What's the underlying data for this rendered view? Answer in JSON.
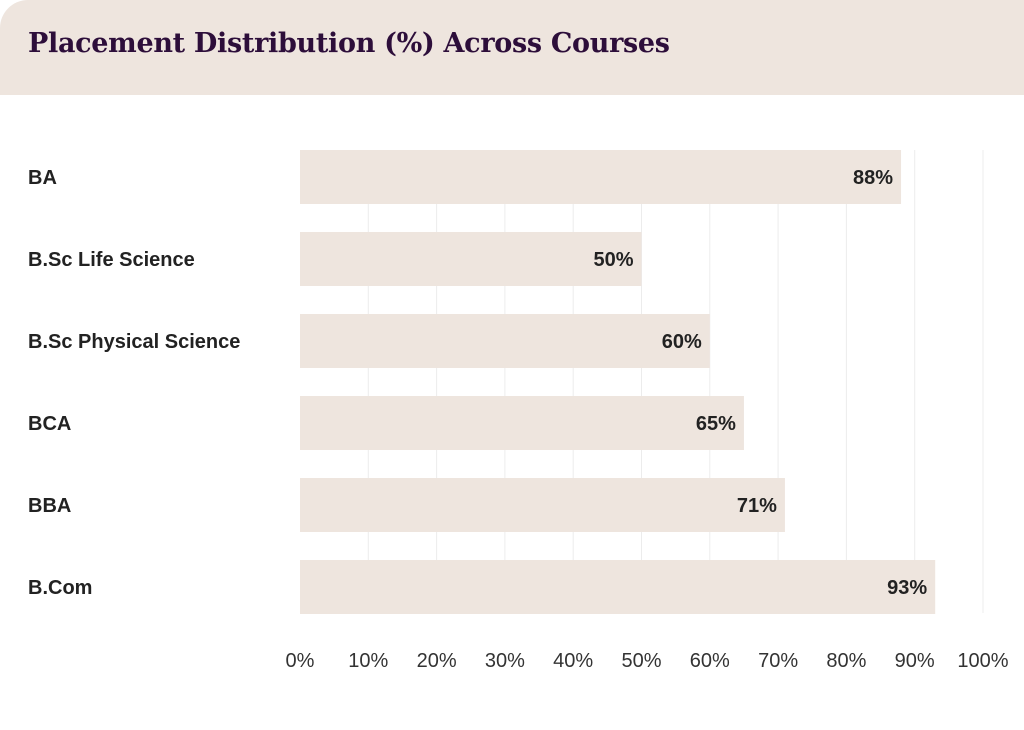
{
  "chart_data": {
    "type": "bar",
    "orientation": "horizontal",
    "title": "Placement Distribution (%) Across Courses",
    "categories": [
      "BA",
      "B.Sc Life Science",
      "B.Sc Physical Science",
      "BCA",
      "BBA",
      "B.Com"
    ],
    "values": [
      88,
      50,
      60,
      65,
      71,
      93
    ],
    "data_labels": [
      "88%",
      "50%",
      "60%",
      "65%",
      "71%",
      "93%"
    ],
    "xlabel": "",
    "ylabel": "",
    "xlim": [
      0,
      100
    ],
    "xticks": [
      0,
      10,
      20,
      30,
      40,
      50,
      60,
      70,
      80,
      90,
      100
    ],
    "xtick_labels": [
      "0%",
      "10%",
      "20%",
      "30%",
      "40%",
      "50%",
      "60%",
      "70%",
      "80%",
      "90%",
      "100%"
    ],
    "grid": true,
    "colors": {
      "bar": "#eee5de",
      "title": "#2d0e3a",
      "text": "#222222",
      "grid": "#ececec"
    }
  }
}
